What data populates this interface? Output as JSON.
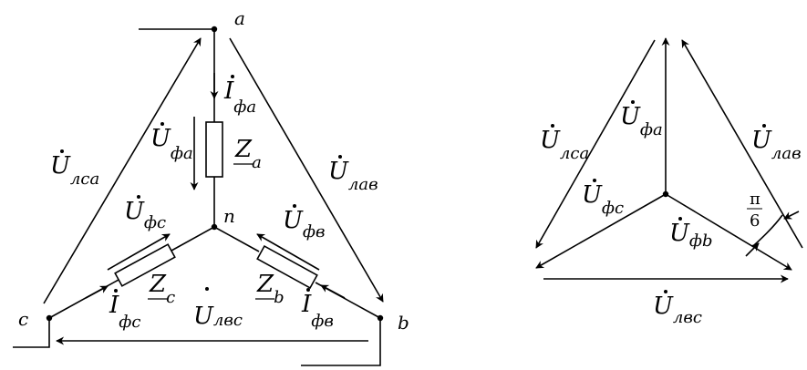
{
  "nodes": {
    "a": "a",
    "b": "b",
    "c": "c",
    "n": "n"
  },
  "left": {
    "U_lca": {
      "main": "U",
      "sub": "лса"
    },
    "U_lab": {
      "main": "U",
      "sub": "лав"
    },
    "U_lbc": {
      "main": "U",
      "sub": "лвс"
    },
    "U_fa": {
      "main": "U",
      "sub": "фа"
    },
    "U_fb": {
      "main": "U",
      "sub": "фв"
    },
    "U_fc": {
      "main": "U",
      "sub": "фс"
    },
    "I_fa": {
      "main": "I",
      "sub": "фа"
    },
    "I_fb": {
      "main": "I",
      "sub": "фв"
    },
    "I_fc": {
      "main": "I",
      "sub": "фс"
    },
    "Z_a": {
      "main": "Z",
      "sub": "a"
    },
    "Z_b": {
      "main": "Z",
      "sub": "b"
    },
    "Z_c": {
      "main": "Z",
      "sub": "c"
    }
  },
  "right": {
    "U_fa": {
      "main": "U",
      "sub": "фа"
    },
    "U_fb": {
      "main": "U",
      "sub": "фb"
    },
    "U_fc": {
      "main": "U",
      "sub": "фс"
    },
    "U_lca": {
      "main": "U",
      "sub": "лса"
    },
    "U_lab": {
      "main": "U",
      "sub": "лав"
    },
    "U_lbc": {
      "main": "U",
      "sub": "лвс"
    },
    "angle": {
      "num": "π",
      "den": "6"
    }
  }
}
